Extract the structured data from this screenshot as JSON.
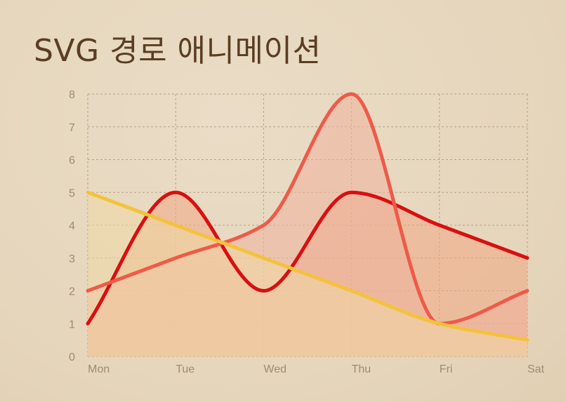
{
  "title": "SVG 경로 애니메이션",
  "chart_data": {
    "type": "area",
    "categories": [
      "Mon",
      "Tue",
      "Wed",
      "Thu",
      "Fri",
      "Sat"
    ],
    "ylim": [
      0,
      8
    ],
    "yticks": [
      "0",
      "1",
      "2",
      "3",
      "4",
      "5",
      "6",
      "7",
      "8"
    ],
    "grid": true,
    "series": [
      {
        "color": "#f2a07c",
        "values": [
          1,
          5,
          2,
          5,
          4,
          3
        ]
      },
      {
        "color": "#ee6b52",
        "values": [
          2,
          3,
          4,
          8,
          1,
          2
        ]
      },
      {
        "color": "#f5c542",
        "values": [
          5,
          4,
          3,
          2,
          1,
          0.5
        ]
      }
    ],
    "line_colors": [
      "#d90f0f",
      "#ef5a48",
      "#f4c23c"
    ],
    "fill_colors": [
      "#f0a884",
      "#eeb29f",
      "#f0d9a4"
    ]
  }
}
